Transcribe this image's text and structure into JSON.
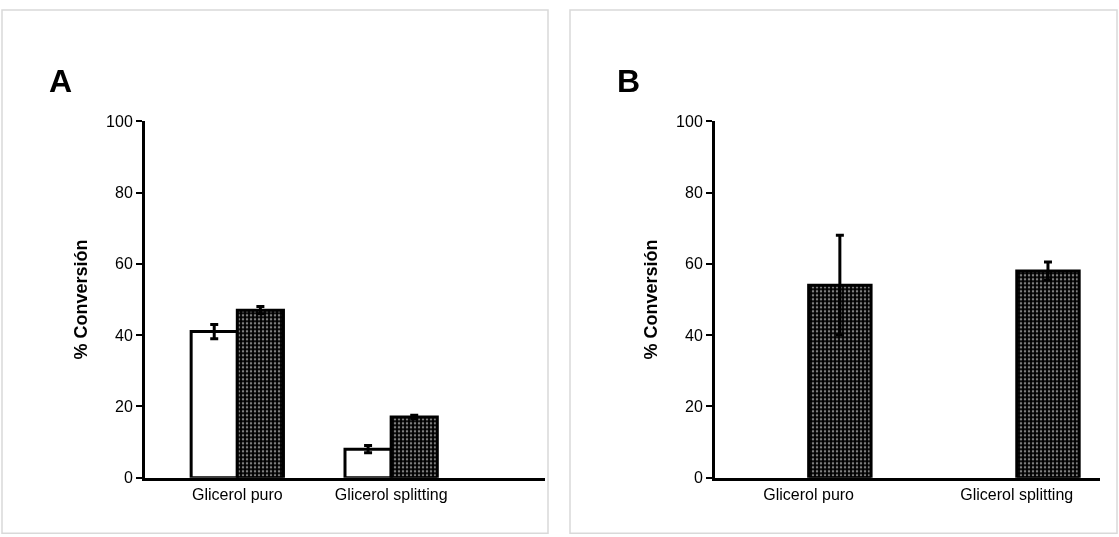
{
  "chart_data": [
    {
      "type": "bar",
      "title": "A",
      "ylabel": "% Conversión",
      "categories": [
        "Glicerol puro",
        "Glicerol splitting"
      ],
      "ylim": [
        0,
        100
      ],
      "yticks": [
        0,
        20,
        40,
        60,
        80,
        100
      ],
      "series": [
        {
          "color": "#ffffff",
          "values": [
            41,
            8
          ],
          "errors": [
            2,
            1
          ]
        },
        {
          "color": "#000000",
          "values": [
            47,
            17
          ],
          "errors": [
            1,
            0.5
          ]
        }
      ]
    },
    {
      "type": "bar",
      "title": "B",
      "ylabel": "% Conversión",
      "categories": [
        "Glicerol puro",
        "Glicerol splitting"
      ],
      "ylim": [
        0,
        100
      ],
      "yticks": [
        0,
        20,
        40,
        60,
        80,
        100
      ],
      "series": [
        {
          "color": "#ffffff",
          "values": [
            null,
            null
          ]
        },
        {
          "color": "#000000",
          "values": [
            54,
            58
          ],
          "errors": [
            14,
            2.5
          ]
        }
      ]
    }
  ]
}
